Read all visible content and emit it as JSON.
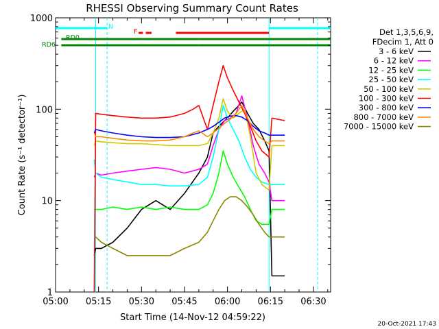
{
  "chart_data": {
    "type": "line",
    "title": "RHESSI Observing Summary Count Rates",
    "xlabel": "Start Time (14-Nov-12 04:59:22)",
    "ylabel": "Count Rate (s⁻¹ detector⁻¹)",
    "yscale": "log",
    "xlim_minutes": [
      0,
      96
    ],
    "ylim": [
      1,
      1000
    ],
    "x_ticks": [
      {
        "minute": 0,
        "label": "05:00"
      },
      {
        "minute": 15,
        "label": "05:15"
      },
      {
        "minute": 30,
        "label": "05:30"
      },
      {
        "minute": 45,
        "label": "05:45"
      },
      {
        "minute": 60,
        "label": "06:00"
      },
      {
        "minute": 75,
        "label": "06:15"
      },
      {
        "minute": 90,
        "label": "06:30"
      }
    ],
    "y_ticks": [
      {
        "value": 1,
        "label": "1"
      },
      {
        "value": 10,
        "label": "10"
      },
      {
        "value": 100,
        "label": "100"
      },
      {
        "value": 1000,
        "label": "1000"
      }
    ],
    "legend": {
      "header": [
        "Det 1,3,5,6,9,",
        "FDecim 1, Att 0"
      ],
      "placement": "right"
    },
    "series": [
      {
        "name": "3 - 6 keV",
        "color": "#000000",
        "x": [
          13.5,
          14,
          16,
          20,
          25,
          30,
          35,
          40,
          45,
          50,
          53,
          55,
          57,
          59,
          60,
          62,
          64,
          65,
          67,
          69,
          71,
          73,
          74.5,
          75.5,
          80
        ],
        "y": [
          2.5,
          3,
          3,
          3.5,
          5,
          8,
          10,
          8,
          12,
          20,
          30,
          55,
          65,
          75,
          80,
          95,
          110,
          120,
          90,
          70,
          60,
          45,
          35,
          1.5,
          1.5
        ]
      },
      {
        "name": "6 - 12 keV",
        "color": "#ff00ff",
        "x": [
          13.5,
          14,
          16,
          20,
          25,
          30,
          35,
          40,
          45,
          50,
          53,
          55,
          57,
          59,
          61,
          63,
          65,
          67,
          69,
          71,
          73,
          74.5,
          75.5,
          80
        ],
        "y": [
          18,
          20,
          19,
          20,
          21,
          22,
          23,
          22,
          20,
          22,
          25,
          40,
          60,
          75,
          80,
          90,
          140,
          80,
          40,
          25,
          20,
          16,
          10,
          10
        ]
      },
      {
        "name": "12 - 25 keV",
        "color": "#00ff00",
        "x": [
          13.5,
          14,
          16,
          20,
          25,
          30,
          35,
          40,
          45,
          50,
          53,
          55,
          57,
          58.5,
          60,
          62,
          64,
          66,
          68,
          70,
          72,
          74.5,
          75.5,
          80
        ],
        "y": [
          8,
          8,
          8,
          8.5,
          8,
          8.5,
          8,
          8.5,
          8,
          8,
          9,
          12,
          20,
          35,
          25,
          18,
          14,
          11,
          8,
          6,
          5.5,
          5.5,
          8,
          8
        ]
      },
      {
        "name": "25 - 50 keV",
        "color": "#00ffff",
        "x": [
          13.5,
          14,
          16,
          20,
          25,
          30,
          35,
          40,
          45,
          50,
          53,
          55,
          57,
          58.5,
          60,
          62,
          64,
          66,
          68,
          70,
          72,
          74.5,
          75.5,
          80
        ],
        "y": [
          28,
          20,
          18,
          17,
          16,
          15,
          15,
          14.5,
          14.5,
          15,
          18,
          30,
          60,
          110,
          80,
          60,
          45,
          30,
          22,
          18,
          16,
          15,
          15,
          15
        ]
      },
      {
        "name": "50 - 100 keV",
        "color": "#cccc00",
        "x": [
          13.5,
          14,
          16,
          20,
          25,
          30,
          35,
          40,
          45,
          50,
          53,
          55,
          57,
          58.5,
          60,
          62,
          64,
          66,
          68,
          70,
          72,
          74.5,
          75.5,
          80
        ],
        "y": [
          40,
          45,
          44,
          43,
          42,
          42,
          41,
          40,
          40,
          40,
          42,
          55,
          80,
          130,
          95,
          80,
          90,
          100,
          50,
          20,
          15,
          13,
          40,
          40
        ]
      },
      {
        "name": "100 - 300 keV",
        "color": "#ff0000",
        "x": [
          13.5,
          14,
          16,
          20,
          25,
          30,
          35,
          40,
          45,
          48,
          50,
          53,
          55,
          57,
          58.5,
          60,
          62,
          64,
          66,
          68,
          70,
          72,
          74.5,
          75.5,
          80
        ],
        "y": [
          1,
          90,
          88,
          85,
          82,
          80,
          80,
          82,
          90,
          100,
          110,
          60,
          110,
          200,
          300,
          220,
          160,
          120,
          90,
          65,
          45,
          35,
          30,
          80,
          75
        ]
      },
      {
        "name": "300 - 800 keV",
        "color": "#0000ff",
        "x": [
          13.5,
          14,
          16,
          20,
          25,
          30,
          35,
          40,
          45,
          50,
          53,
          55,
          57,
          59,
          61,
          63,
          65,
          67,
          69,
          71,
          73,
          74.5,
          75.5,
          80
        ],
        "y": [
          55,
          60,
          58,
          55,
          52,
          50,
          49,
          49,
          50,
          55,
          60,
          65,
          72,
          80,
          84,
          85,
          82,
          75,
          65,
          58,
          55,
          52,
          52,
          52
        ]
      },
      {
        "name": "800 - 7000 keV",
        "color": "#ff8800",
        "x": [
          13.5,
          14,
          16,
          20,
          25,
          30,
          35,
          40,
          45,
          48,
          50,
          53,
          55,
          57,
          59,
          61,
          63,
          65,
          67,
          69,
          71,
          73,
          74.5,
          75.5,
          80
        ],
        "y": [
          55,
          50,
          50,
          48,
          46,
          45,
          45,
          46,
          50,
          55,
          58,
          50,
          55,
          62,
          70,
          78,
          90,
          110,
          80,
          60,
          50,
          45,
          42,
          45,
          45
        ]
      },
      {
        "name": "7000 - 15000 keV",
        "color": "#888800",
        "x": [
          13.5,
          14,
          16,
          20,
          25,
          30,
          35,
          40,
          45,
          50,
          53,
          55,
          57,
          59,
          61,
          63,
          65,
          67,
          69,
          71,
          73,
          74.5,
          75.5,
          80
        ],
        "y": [
          4,
          4,
          3.5,
          3,
          2.5,
          2.5,
          2.5,
          2.5,
          3,
          3.5,
          4.5,
          6,
          8,
          10,
          11,
          11,
          10,
          8.5,
          7,
          5.5,
          4.5,
          4,
          4,
          4
        ]
      }
    ],
    "flags": [
      {
        "label": "N",
        "color": "#00ffff",
        "segments": [
          [
            0,
            18
          ],
          [
            74.5,
            96
          ]
        ]
      },
      {
        "label": "F",
        "color": "#ff0000",
        "segments": [
          [
            29,
            30.5
          ],
          [
            31.5,
            33.5
          ],
          [
            42,
            74.5
          ]
        ]
      },
      {
        "label": "RD0",
        "color": "#008800",
        "segments": [
          [
            2,
            14
          ],
          [
            14,
            50
          ],
          [
            50,
            74.5
          ],
          [
            74.5,
            96
          ]
        ]
      },
      {
        "label": "RD6",
        "color": "#008800",
        "segments": [
          [
            2,
            14
          ],
          [
            14,
            50
          ],
          [
            50,
            74.5
          ],
          [
            74.5,
            96
          ]
        ]
      }
    ],
    "vertical_markers": [
      {
        "minute": 14,
        "style": "solid",
        "color": "#00ffff"
      },
      {
        "minute": 18,
        "style": "dashed",
        "color": "#00ffff"
      },
      {
        "minute": 74.5,
        "style": "solid",
        "color": "#00ffff"
      },
      {
        "minute": 91.5,
        "style": "dashed",
        "color": "#00ffff"
      }
    ]
  },
  "footer": {
    "timestamp": "20-Oct-2021 17:43"
  }
}
